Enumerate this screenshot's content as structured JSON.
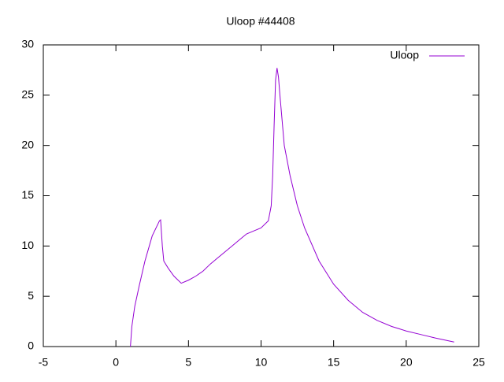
{
  "chart_data": {
    "type": "line",
    "title": "Uloop #44408",
    "x": [
      1.0,
      1.1,
      1.3,
      1.6,
      2.0,
      2.5,
      3.0,
      3.08,
      3.2,
      3.3,
      3.6,
      4.0,
      4.5,
      5.0,
      5.5,
      6.0,
      6.5,
      7.0,
      7.5,
      8.0,
      8.5,
      9.0,
      9.5,
      10.0,
      10.5,
      10.7,
      10.8,
      10.9,
      11.0,
      11.1,
      11.2,
      11.3,
      11.6,
      12.0,
      12.5,
      13.0,
      14.0,
      15.0,
      16.0,
      17.0,
      18.0,
      19.0,
      20.0,
      21.0,
      22.0,
      23.3
    ],
    "series": [
      {
        "name": "Uloop",
        "color": "#9400d3",
        "values": [
          0,
          2,
          4,
          6,
          8.5,
          11,
          12.5,
          12.6,
          10,
          8.5,
          7.8,
          7.0,
          6.3,
          6.6,
          7.0,
          7.5,
          8.2,
          8.8,
          9.4,
          10.0,
          10.6,
          11.2,
          11.5,
          11.8,
          12.5,
          14,
          17,
          22,
          26.5,
          27.7,
          26.8,
          25,
          20,
          17,
          14,
          11.8,
          8.5,
          6.2,
          4.6,
          3.4,
          2.6,
          2.0,
          1.55,
          1.2,
          0.85,
          0.45
        ]
      }
    ],
    "xlim": [
      -5,
      25
    ],
    "xticks": [
      -5,
      0,
      5,
      10,
      15,
      20,
      25
    ],
    "ylim": [
      0,
      30
    ],
    "yticks": [
      0,
      5,
      10,
      15,
      20,
      25,
      30
    ],
    "legend": "top-right"
  }
}
